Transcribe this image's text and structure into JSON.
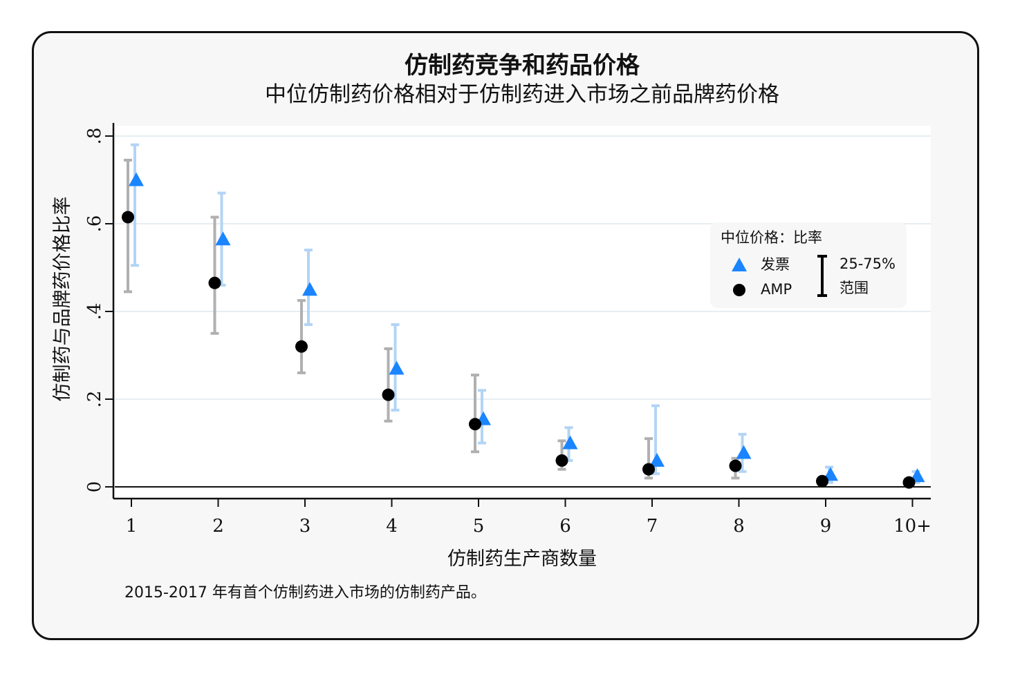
{
  "chart_data": {
    "type": "scatter",
    "title": "仿制药竞争和药品价格",
    "subtitle": "中位仿制药价格相对于仿制药进入市场之前品牌药价格",
    "xlabel": "仿制药生产商数量",
    "ylabel": "仿制药与品牌药价格比率",
    "categories": [
      "1",
      "2",
      "3",
      "4",
      "5",
      "6",
      "7",
      "8",
      "9",
      "10+"
    ],
    "yticks": [
      0,
      0.2,
      0.4,
      0.6,
      0.8
    ],
    "ytick_labels": [
      "0",
      ".2",
      ".4",
      ".6",
      ".8"
    ],
    "ylim": [
      -0.02,
      0.82
    ],
    "grid": true,
    "legend_position": "right",
    "legend": {
      "title": "中位价格：比率",
      "range_label_1": "25-75%",
      "range_label_2": "范围"
    },
    "series": [
      {
        "name": "发票",
        "marker": "triangle",
        "color": "#1a85ff",
        "error_color": "#b3d4f5",
        "values": [
          0.7,
          0.565,
          0.45,
          0.27,
          0.155,
          0.1,
          0.06,
          0.078,
          0.028,
          0.025
        ],
        "low": [
          0.505,
          0.46,
          0.37,
          0.175,
          0.1,
          0.06,
          0.03,
          0.035,
          0.01,
          0.01
        ],
        "high": [
          0.78,
          0.67,
          0.54,
          0.37,
          0.22,
          0.135,
          0.185,
          0.12,
          0.045,
          0.035
        ]
      },
      {
        "name": "AMP",
        "marker": "circle",
        "color": "#000000",
        "error_color": "#b0b0b0",
        "values": [
          0.615,
          0.465,
          0.32,
          0.21,
          0.143,
          0.06,
          0.04,
          0.048,
          0.013,
          0.01
        ],
        "low": [
          0.445,
          0.35,
          0.26,
          0.15,
          0.08,
          0.04,
          0.02,
          0.02,
          0.005,
          0.002
        ],
        "high": [
          0.745,
          0.615,
          0.425,
          0.315,
          0.255,
          0.105,
          0.11,
          0.065,
          0.02,
          0.015
        ]
      }
    ],
    "note": "2015-2017 年有首个仿制药进入市场的仿制药产品。"
  }
}
